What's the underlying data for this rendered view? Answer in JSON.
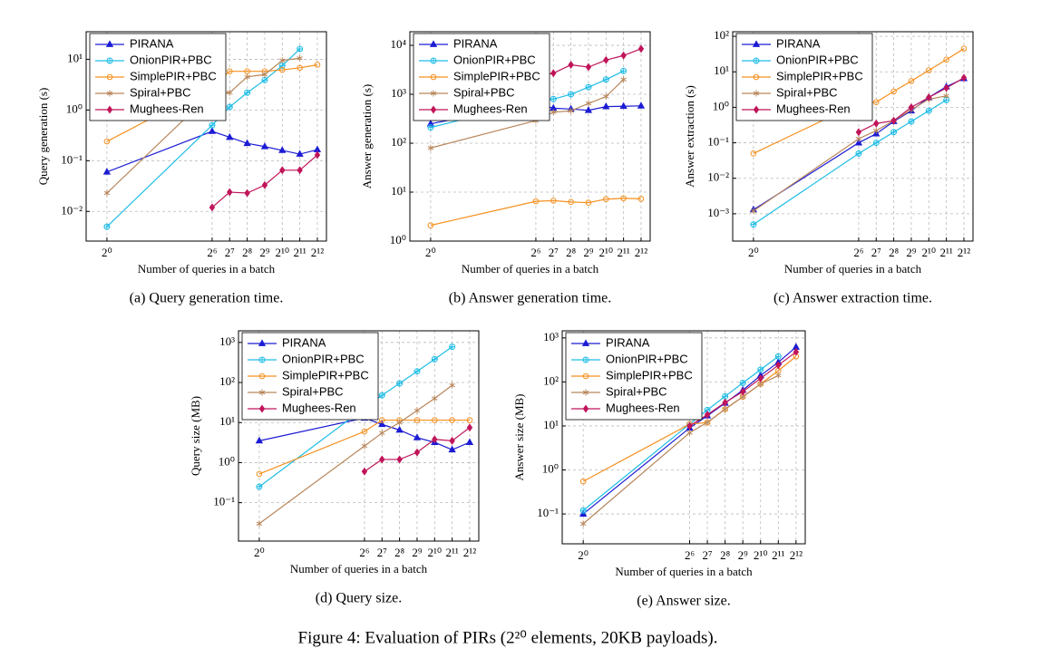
{
  "chart_data": [
    {
      "type": "line",
      "caption": "(a) Query generation time.",
      "xlabel": "Number of queries in a batch",
      "ylabel": "Query generation (s)",
      "xscale": "log",
      "yscale": "log",
      "grid": true,
      "legend": "upper left",
      "x": [
        1,
        64,
        128,
        256,
        512,
        1024,
        2048,
        4096
      ],
      "xlim": [
        0.44,
        5870
      ],
      "ylim": [
        0.0026,
        35
      ],
      "xticks": [
        {
          "value": 1,
          "label": "2⁰"
        },
        {
          "value": 64,
          "label": "2⁶"
        },
        {
          "value": 128,
          "label": "2⁷"
        },
        {
          "value": 256,
          "label": "2⁸"
        },
        {
          "value": 512,
          "label": "2⁹"
        },
        {
          "value": 1024,
          "label": "2¹⁰"
        },
        {
          "value": 2048,
          "label": "2¹¹"
        },
        {
          "value": 4096,
          "label": "2¹²"
        }
      ],
      "yticks": [
        {
          "value": 0.01,
          "label": "10⁻²"
        },
        {
          "value": 0.1,
          "label": "10⁻¹"
        },
        {
          "value": 1,
          "label": "10⁰"
        },
        {
          "value": 10,
          "label": "10¹"
        }
      ],
      "series": [
        {
          "name": "PIRANA",
          "color": "#1c1cd4",
          "marker": "triangle",
          "values": [
            0.06,
            0.38,
            0.29,
            0.22,
            0.19,
            0.16,
            0.135,
            0.165
          ]
        },
        {
          "name": "OnionPIR+PBC",
          "color": "#1fbde6",
          "marker": "circle-plus",
          "values": [
            0.005,
            0.5,
            1.15,
            2.2,
            3.9,
            7.5,
            16,
            null
          ]
        },
        {
          "name": "SimplePIR+PBC",
          "color": "#f5901e",
          "marker": "circle",
          "values": [
            0.24,
            2.9,
            5.8,
            5.8,
            5.8,
            6.2,
            6.8,
            7.8
          ]
        },
        {
          "name": "Spiral+PBC",
          "color": "#b8865b",
          "marker": "star",
          "values": [
            0.023,
            2.2,
            2.2,
            4.5,
            5.0,
            9.5,
            10.5,
            null
          ]
        },
        {
          "name": "Mughees-Ren",
          "color": "#c0155a",
          "marker": "diamond",
          "values": [
            null,
            0.012,
            0.024,
            0.023,
            0.033,
            0.065,
            0.065,
            0.13
          ]
        }
      ]
    },
    {
      "type": "line",
      "caption": "(b) Answer generation time.",
      "xlabel": "Number of queries in a batch",
      "ylabel": "Answer generation (s)",
      "xscale": "log",
      "yscale": "log",
      "grid": true,
      "legend": "upper left",
      "x": [
        1,
        64,
        128,
        256,
        512,
        1024,
        2048,
        4096
      ],
      "xlim": [
        0.44,
        5870
      ],
      "ylim": [
        1,
        19000
      ],
      "xticks": [
        {
          "value": 1,
          "label": "2⁰"
        },
        {
          "value": 64,
          "label": "2⁶"
        },
        {
          "value": 128,
          "label": "2⁷"
        },
        {
          "value": 256,
          "label": "2⁸"
        },
        {
          "value": 512,
          "label": "2⁹"
        },
        {
          "value": 1024,
          "label": "2¹⁰"
        },
        {
          "value": 2048,
          "label": "2¹¹"
        },
        {
          "value": 4096,
          "label": "2¹²"
        }
      ],
      "yticks": [
        {
          "value": 1,
          "label": "10⁰"
        },
        {
          "value": 10,
          "label": "10¹"
        },
        {
          "value": 100,
          "label": "10²"
        },
        {
          "value": 1000,
          "label": "10³"
        },
        {
          "value": 10000,
          "label": "10⁴"
        }
      ],
      "series": [
        {
          "name": "PIRANA",
          "color": "#1c1cd4",
          "marker": "triangle",
          "values": [
            250,
            650,
            520,
            500,
            470,
            560,
            570,
            580
          ]
        },
        {
          "name": "OnionPIR+PBC",
          "color": "#1fbde6",
          "marker": "circle-plus",
          "values": [
            210,
            720,
            800,
            1000,
            1400,
            2000,
            3000,
            null
          ]
        },
        {
          "name": "SimplePIR+PBC",
          "color": "#f5901e",
          "marker": "circle",
          "values": [
            2.1,
            6.5,
            6.7,
            6.3,
            6.1,
            7.2,
            7.5,
            7.3
          ]
        },
        {
          "name": "Spiral+PBC",
          "color": "#b8865b",
          "marker": "star",
          "values": [
            80,
            290,
            430,
            460,
            650,
            900,
            2000,
            null
          ]
        },
        {
          "name": "Mughees-Ren",
          "color": "#c0155a",
          "marker": "diamond",
          "values": [
            null,
            2300,
            2700,
            4000,
            3600,
            5000,
            6200,
            8500
          ]
        }
      ]
    },
    {
      "type": "line",
      "caption": "(c) Answer extraction time.",
      "xlabel": "Number of queries in a batch",
      "ylabel": "Answer extraction (s)",
      "xscale": "log",
      "yscale": "log",
      "grid": true,
      "legend": "upper left",
      "x": [
        1,
        64,
        128,
        256,
        512,
        1024,
        2048,
        4096
      ],
      "xlim": [
        0.44,
        5870
      ],
      "ylim": [
        0.00017,
        135
      ],
      "xticks": [
        {
          "value": 1,
          "label": "2⁰"
        },
        {
          "value": 64,
          "label": "2⁶"
        },
        {
          "value": 128,
          "label": "2⁷"
        },
        {
          "value": 256,
          "label": "2⁸"
        },
        {
          "value": 512,
          "label": "2⁹"
        },
        {
          "value": 1024,
          "label": "2¹⁰"
        },
        {
          "value": 2048,
          "label": "2¹¹"
        },
        {
          "value": 4096,
          "label": "2¹²"
        }
      ],
      "yticks": [
        {
          "value": 0.001,
          "label": "10⁻³"
        },
        {
          "value": 0.01,
          "label": "10⁻²"
        },
        {
          "value": 0.1,
          "label": "10⁻¹"
        },
        {
          "value": 1,
          "label": "10⁰"
        },
        {
          "value": 10,
          "label": "10¹"
        },
        {
          "value": 100,
          "label": "10²"
        }
      ],
      "series": [
        {
          "name": "PIRANA",
          "color": "#1c1cd4",
          "marker": "triangle",
          "values": [
            0.0013,
            0.1,
            0.18,
            0.4,
            0.8,
            1.9,
            3.8,
            6.5
          ]
        },
        {
          "name": "OnionPIR+PBC",
          "color": "#1fbde6",
          "marker": "circle-plus",
          "values": [
            0.0005,
            0.05,
            0.1,
            0.2,
            0.4,
            0.8,
            1.6,
            null
          ]
        },
        {
          "name": "SimplePIR+PBC",
          "color": "#f5901e",
          "marker": "circle",
          "values": [
            0.05,
            1.3,
            1.4,
            2.8,
            5.5,
            11,
            22,
            45
          ]
        },
        {
          "name": "Spiral+PBC",
          "color": "#b8865b",
          "marker": "star",
          "values": [
            0.0012,
            0.13,
            0.22,
            0.42,
            0.85,
            1.7,
            2.1,
            null
          ]
        },
        {
          "name": "Mughees-Ren",
          "color": "#c0155a",
          "marker": "diamond",
          "values": [
            null,
            0.2,
            0.35,
            0.42,
            1.0,
            1.9,
            3.5,
            6.8
          ]
        }
      ]
    },
    {
      "type": "line",
      "caption": "(d) Query size.",
      "xlabel": "Number of queries in a batch",
      "ylabel": "Query size (MB)",
      "xscale": "log",
      "yscale": "log",
      "grid": true,
      "legend": "upper left",
      "x": [
        1,
        64,
        128,
        256,
        512,
        1024,
        2048,
        4096
      ],
      "xlim": [
        0.44,
        5870
      ],
      "ylim": [
        0.011,
        1950
      ],
      "xticks": [
        {
          "value": 1,
          "label": "2⁰"
        },
        {
          "value": 64,
          "label": "2⁶"
        },
        {
          "value": 128,
          "label": "2⁷"
        },
        {
          "value": 256,
          "label": "2⁸"
        },
        {
          "value": 512,
          "label": "2⁹"
        },
        {
          "value": 1024,
          "label": "2¹⁰"
        },
        {
          "value": 2048,
          "label": "2¹¹"
        },
        {
          "value": 4096,
          "label": "2¹²"
        }
      ],
      "yticks": [
        {
          "value": 0.1,
          "label": "10⁻¹"
        },
        {
          "value": 1,
          "label": "10⁰"
        },
        {
          "value": 10,
          "label": "10¹"
        },
        {
          "value": 100,
          "label": "10²"
        },
        {
          "value": 1000,
          "label": "10³"
        }
      ],
      "series": [
        {
          "name": "PIRANA",
          "color": "#1c1cd4",
          "marker": "triangle",
          "values": [
            3.5,
            13,
            9,
            6.5,
            4.2,
            3.2,
            2.1,
            3.2
          ]
        },
        {
          "name": "OnionPIR+PBC",
          "color": "#1fbde6",
          "marker": "circle-plus",
          "values": [
            0.25,
            23,
            48,
            95,
            190,
            380,
            780,
            null
          ]
        },
        {
          "name": "SimplePIR+PBC",
          "color": "#f5901e",
          "marker": "circle",
          "values": [
            0.52,
            6,
            11.5,
            11.5,
            11.5,
            11.5,
            11.5,
            11.5
          ]
        },
        {
          "name": "Spiral+PBC",
          "color": "#b8865b",
          "marker": "star",
          "values": [
            0.03,
            2.6,
            5.5,
            10,
            20,
            40,
            85,
            null
          ]
        },
        {
          "name": "Mughees-Ren",
          "color": "#c0155a",
          "marker": "diamond",
          "values": [
            null,
            0.6,
            1.2,
            1.2,
            1.8,
            3.8,
            3.5,
            7.5
          ]
        }
      ]
    },
    {
      "type": "line",
      "caption": "(e) Answer size.",
      "xlabel": "Number of queries in a batch",
      "ylabel": "Answer size (MB)",
      "xscale": "log",
      "yscale": "log",
      "grid": true,
      "legend": "upper left",
      "x": [
        1,
        64,
        128,
        256,
        512,
        1024,
        2048,
        4096
      ],
      "xlim": [
        0.44,
        5870
      ],
      "ylim": [
        0.021,
        1450
      ],
      "xticks": [
        {
          "value": 1,
          "label": "2⁰"
        },
        {
          "value": 64,
          "label": "2⁶"
        },
        {
          "value": 128,
          "label": "2⁷"
        },
        {
          "value": 256,
          "label": "2⁸"
        },
        {
          "value": 512,
          "label": "2⁹"
        },
        {
          "value": 1024,
          "label": "2¹⁰"
        },
        {
          "value": 2048,
          "label": "2¹¹"
        },
        {
          "value": 4096,
          "label": "2¹²"
        }
      ],
      "yticks": [
        {
          "value": 0.1,
          "label": "10⁻¹"
        },
        {
          "value": 1,
          "label": "10⁰"
        },
        {
          "value": 10,
          "label": "10¹"
        },
        {
          "value": 100,
          "label": "10²"
        },
        {
          "value": 1000,
          "label": "10³"
        }
      ],
      "series": [
        {
          "name": "PIRANA",
          "color": "#1c1cd4",
          "marker": "triangle",
          "values": [
            0.1,
            9,
            17,
            33,
            65,
            140,
            280,
            620
          ]
        },
        {
          "name": "OnionPIR+PBC",
          "color": "#1fbde6",
          "marker": "circle-plus",
          "values": [
            0.12,
            11,
            23,
            47,
            95,
            190,
            380,
            null
          ]
        },
        {
          "name": "SimplePIR+PBC",
          "color": "#f5901e",
          "marker": "circle",
          "values": [
            0.55,
            11,
            12,
            24,
            46,
            90,
            180,
            380
          ]
        },
        {
          "name": "Spiral+PBC",
          "color": "#b8865b",
          "marker": "star",
          "values": [
            0.06,
            7,
            12,
            24,
            46,
            90,
            140,
            null
          ]
        },
        {
          "name": "Mughees-Ren",
          "color": "#c0155a",
          "marker": "diamond",
          "values": [
            null,
            10,
            18,
            34,
            60,
            120,
            240,
            480
          ]
        }
      ]
    }
  ],
  "figure_caption": "Figure 4: Evaluation of PIRs (2²⁰ elements, 20KB payloads)."
}
